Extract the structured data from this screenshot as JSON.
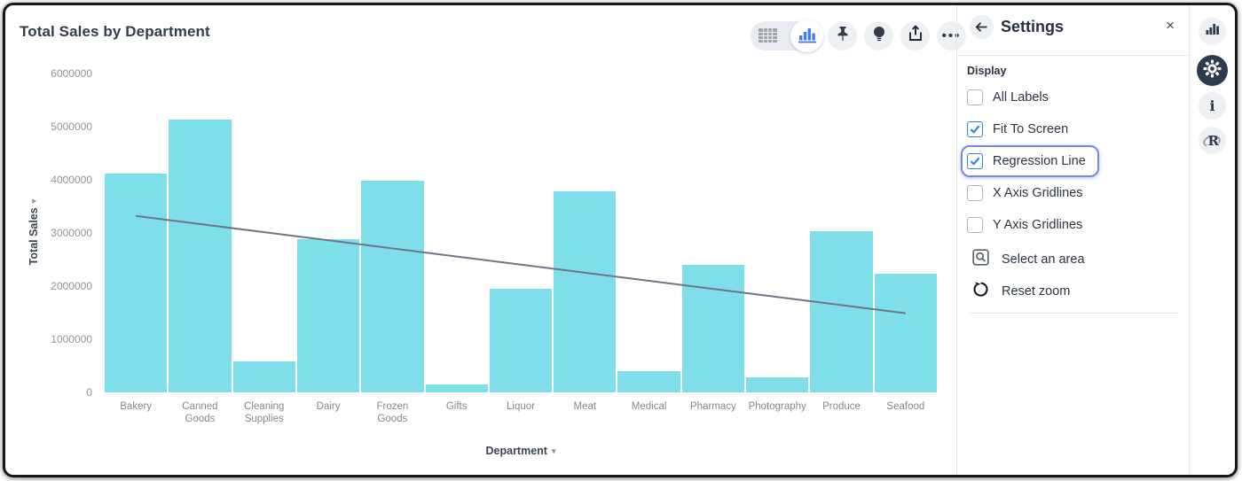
{
  "chart": {
    "title": "Total Sales by Department",
    "chart_data": {
      "type": "bar",
      "title": "Total Sales by Department",
      "xlabel": "Department",
      "ylabel": "Total Sales",
      "categories": [
        "Bakery",
        "Canned Goods",
        "Cleaning Supplies",
        "Dairy",
        "Frozen Goods",
        "Gifts",
        "Liquor",
        "Meat",
        "Medical",
        "Pharmacy",
        "Photography",
        "Produce",
        "Seafood"
      ],
      "values": [
        4120000,
        5130000,
        580000,
        2880000,
        3980000,
        150000,
        1950000,
        3780000,
        400000,
        2400000,
        280000,
        3030000,
        2230000
      ],
      "ylim": [
        0,
        6000000
      ],
      "yticks": [
        0,
        1000000,
        2000000,
        3000000,
        4000000,
        5000000,
        6000000
      ],
      "grid": false,
      "legend": "none",
      "bar_color": "#7edee9",
      "regression_line": {
        "start_value": 3320000,
        "end_value": 1490000,
        "color": "#6e7584",
        "width": 2
      }
    }
  },
  "toolbar": {
    "icons": {
      "table-icon": "grid",
      "bar-chart-icon": "bars",
      "pin-icon": "pushpin",
      "lightbulb-icon": "bulb",
      "share-icon": "box-up-arrow",
      "more-icon": "•••"
    },
    "selected_viz": "bar-chart"
  },
  "settings_panel": {
    "back_icon": "left-arrow",
    "title": "Settings",
    "close_icon": "×",
    "section_label": "Display",
    "checkboxes": [
      {
        "label": "All Labels",
        "checked": false,
        "highlighted": false
      },
      {
        "label": "Fit To Screen",
        "checked": true,
        "highlighted": false
      },
      {
        "label": "Regression Line",
        "checked": true,
        "highlighted": true
      },
      {
        "label": "X Axis Gridlines",
        "checked": false,
        "highlighted": false
      },
      {
        "label": "Y Axis Gridlines",
        "checked": false,
        "highlighted": false
      }
    ],
    "actions": [
      {
        "icon": "area-select-icon",
        "label": "Select an area"
      },
      {
        "icon": "reset-zoom-icon",
        "label": "Reset zoom"
      }
    ]
  },
  "right_rail": [
    {
      "icon": "bar-chart-icon",
      "active": false
    },
    {
      "icon": "gear-icon",
      "active": true
    },
    {
      "icon": "info-icon",
      "active": false
    },
    {
      "icon": "r-logo-icon",
      "active": false
    }
  ],
  "colors": {
    "bar": "#7edee9",
    "regression": "#6e7584",
    "accent_blue": "#2f80ed",
    "toggle_blue": "#3f7df4",
    "focus_ring": "#7b87de",
    "dark_navy": "#2e3a4d",
    "text_dark": "#2b3442",
    "text_gray": "#8f959e"
  }
}
